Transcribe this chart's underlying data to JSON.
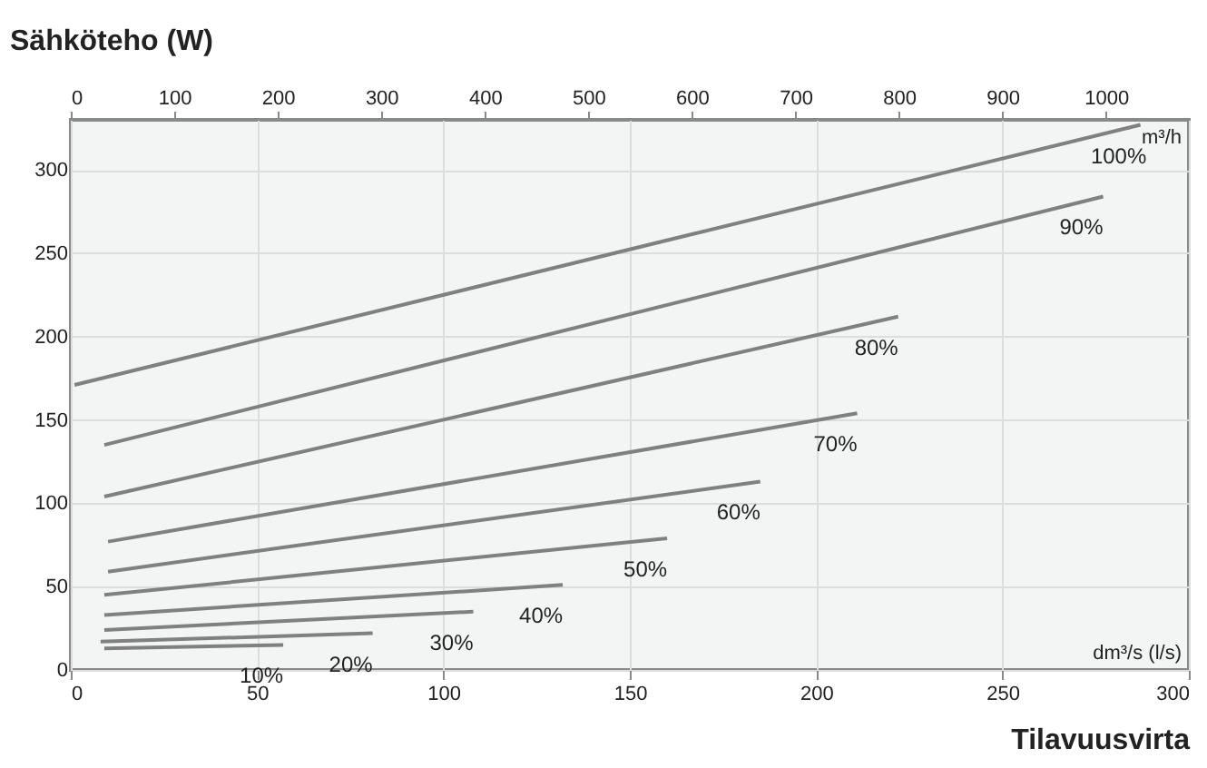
{
  "chart_data": {
    "type": "line",
    "ylabel": "Sähköteho (W)",
    "xlabel": "Tilavuusvirta",
    "xlim": [
      0,
      300
    ],
    "xticks": [
      0,
      50,
      100,
      150,
      200,
      250,
      300
    ],
    "x2lim": [
      0,
      1080
    ],
    "x2ticks": [
      0,
      100,
      200,
      300,
      400,
      500,
      600,
      700,
      800,
      900,
      1000
    ],
    "ylim": [
      0,
      330
    ],
    "yticks": [
      0,
      50,
      100,
      150,
      200,
      250,
      300
    ],
    "grid": true,
    "legend": false,
    "marker": "none",
    "line_style": "solid",
    "annotations": [
      "m³/h",
      "dm³/s (l/s)"
    ],
    "series": [
      {
        "name": "100%",
        "color": "#808080",
        "x": [
          1,
          287
        ],
        "values": [
          171,
          327
        ]
      },
      {
        "name": "90%",
        "color": "#808080",
        "x": [
          9,
          277
        ],
        "values": [
          135,
          284
        ]
      },
      {
        "name": "80%",
        "color": "#808080",
        "x": [
          9,
          222
        ],
        "values": [
          104,
          212
        ]
      },
      {
        "name": "70%",
        "color": "#808080",
        "x": [
          10,
          211
        ],
        "values": [
          77,
          154
        ]
      },
      {
        "name": "60%",
        "color": "#808080",
        "x": [
          10,
          185
        ],
        "values": [
          59,
          113
        ]
      },
      {
        "name": "50%",
        "color": "#808080",
        "x": [
          9,
          160
        ],
        "values": [
          45,
          79
        ]
      },
      {
        "name": "40%",
        "color": "#808080",
        "x": [
          9,
          132
        ],
        "values": [
          33,
          51
        ]
      },
      {
        "name": "30%",
        "color": "#808080",
        "x": [
          9,
          108
        ],
        "values": [
          24,
          35
        ]
      },
      {
        "name": "20%",
        "color": "#808080",
        "x": [
          8,
          81
        ],
        "values": [
          17,
          22
        ]
      },
      {
        "name": "10%",
        "color": "#808080",
        "x": [
          9,
          57
        ],
        "values": [
          13,
          15
        ]
      }
    ]
  }
}
